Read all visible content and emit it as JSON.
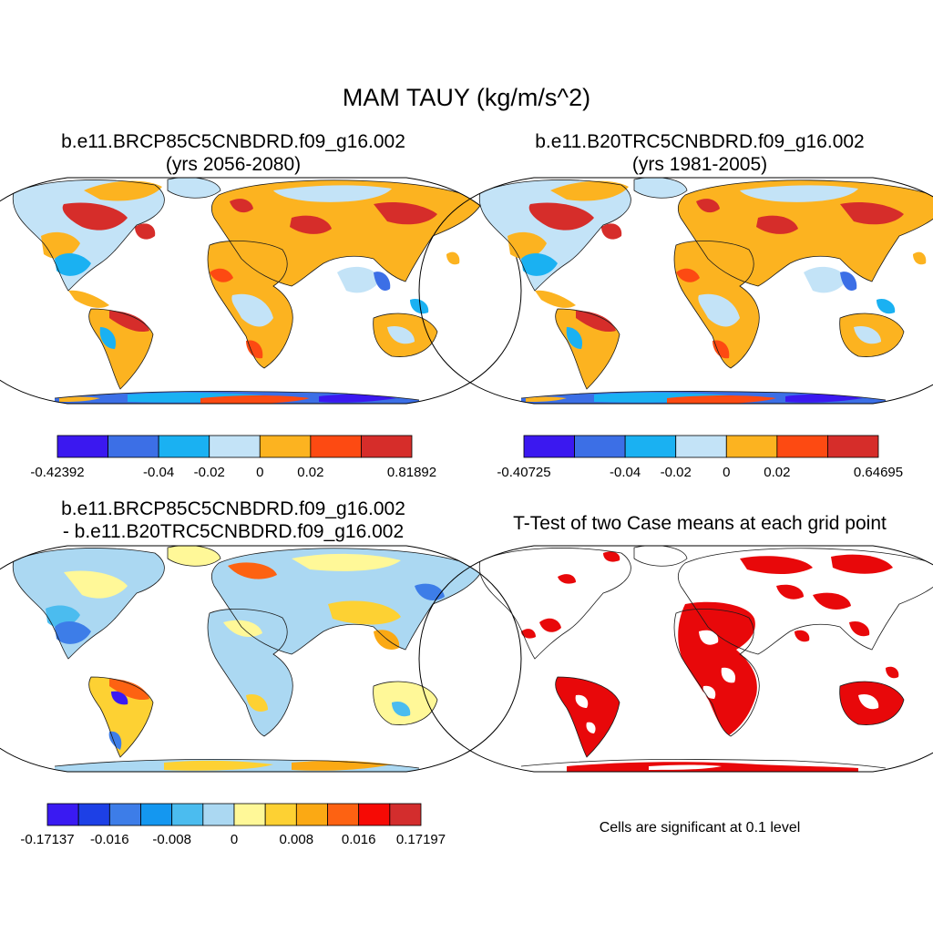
{
  "main_title": "MAM TAUY (kg/m/s^2)",
  "panels": [
    {
      "line1": "b.e11.BRCP85C5CNBDRD.f09_g16.002",
      "line2": "(yrs 2056-2080)",
      "colorbar": {
        "colors": [
          "#3b18f0",
          "#3c6fe6",
          "#1ab1f2",
          "#c3e3f7",
          "#fcb320",
          "#fd4a12",
          "#d62d2a"
        ],
        "labels": [
          "-0.42392",
          "-0.04",
          "-0.02",
          "0",
          "0.02",
          "0.81892"
        ]
      }
    },
    {
      "line1": "b.e11.B20TRC5CNBDRD.f09_g16.002",
      "line2": "(yrs 1981-2005)",
      "colorbar": {
        "colors": [
          "#3b18f0",
          "#3c6fe6",
          "#1ab1f2",
          "#c3e3f7",
          "#fcb320",
          "#fd4a12",
          "#d62d2a"
        ],
        "labels": [
          "-0.40725",
          "-0.04",
          "-0.02",
          "0",
          "0.02",
          "0.64695"
        ]
      }
    },
    {
      "line1": "b.e11.BRCP85C5CNBDRD.f09_g16.002",
      "line2": "- b.e11.B20TRC5CNBDRD.f09_g16.002",
      "colorbar": {
        "colors": [
          "#3a1af2",
          "#1d40e6",
          "#3d7de8",
          "#1497f0",
          "#4bbcef",
          "#abd8f2",
          "#fff898",
          "#fdd133",
          "#fba914",
          "#fd6212",
          "#f60a05",
          "#d32d2d"
        ],
        "labels": [
          "-0.17137",
          "-0.016",
          "-0.008",
          "0",
          "0.008",
          "0.016",
          "0.17197"
        ]
      }
    },
    {
      "line1": "T-Test of two Case means at each grid point",
      "line2": "",
      "note": "Cells are significant at 0.1 level",
      "significant_color": "#e8080a"
    }
  ]
}
